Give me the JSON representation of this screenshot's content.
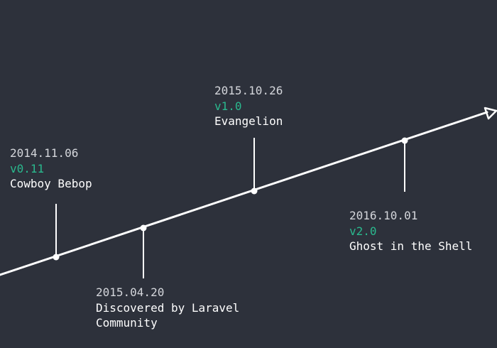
{
  "colors": {
    "background": "#2d313b",
    "line": "#ffffff",
    "date_text": "#d4d6db",
    "version_accent": "#2ab98e"
  },
  "events": [
    {
      "date": "2014.11.06",
      "version": "v0.11",
      "name": "Cowboy Bebop"
    },
    {
      "date": "2015.04.20",
      "version": "",
      "name_lines": [
        "Discovered by Laravel",
        "Community"
      ]
    },
    {
      "date": "2015.10.26",
      "version": "v1.0",
      "name": "Evangelion"
    },
    {
      "date": "2016.10.01",
      "version": "v2.0",
      "name": "Ghost in the Shell"
    }
  ]
}
